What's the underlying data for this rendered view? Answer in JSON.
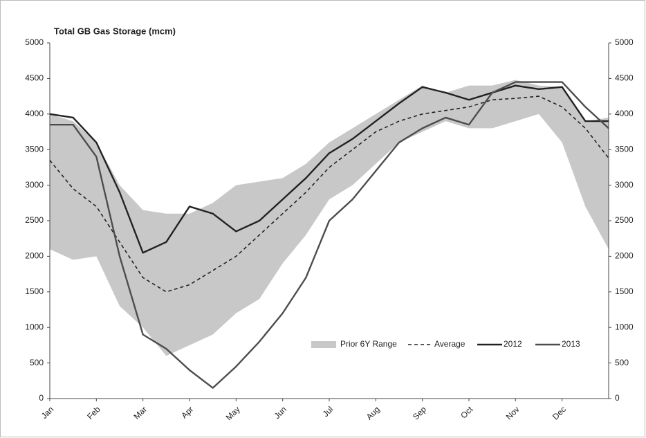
{
  "chart_data": {
    "type": "line",
    "title": "Total GB Gas Storage (mcm)",
    "x": [
      0,
      0.5,
      1,
      1.5,
      2,
      2.5,
      3,
      3.5,
      4,
      4.5,
      5,
      5.5,
      6,
      6.5,
      7,
      7.5,
      8,
      8.5,
      9,
      9.5,
      10,
      10.5,
      11,
      11.5,
      12
    ],
    "xlim": [
      0,
      12
    ],
    "xticks": [
      {
        "value": 0,
        "label": "Jan"
      },
      {
        "value": 1,
        "label": "Feb"
      },
      {
        "value": 2,
        "label": "Mar"
      },
      {
        "value": 3,
        "label": "Apr"
      },
      {
        "value": 4,
        "label": "May"
      },
      {
        "value": 5,
        "label": "Jun"
      },
      {
        "value": 6,
        "label": "Jul"
      },
      {
        "value": 7,
        "label": "Aug"
      },
      {
        "value": 8,
        "label": "Sep"
      },
      {
        "value": 9,
        "label": "Oct"
      },
      {
        "value": 10,
        "label": "Nov"
      },
      {
        "value": 11,
        "label": "Dec"
      }
    ],
    "ylim": [
      0,
      5000
    ],
    "yticks": [
      0,
      500,
      1000,
      1500,
      2000,
      2500,
      3000,
      3500,
      4000,
      4500,
      5000
    ],
    "y2lim": [
      0,
      5000
    ],
    "y2ticks": [
      0,
      500,
      1000,
      1500,
      2000,
      2500,
      3000,
      3500,
      4000,
      4500,
      5000
    ],
    "range": {
      "name": "Prior 6Y Range",
      "color": "#c8c8c8",
      "low": [
        2100,
        1950,
        2000,
        1300,
        1000,
        600,
        750,
        900,
        1200,
        1400,
        1900,
        2300,
        2800,
        3000,
        3300,
        3600,
        3750,
        3900,
        3800,
        3800,
        3900,
        4000,
        3600,
        2700,
        2100
      ],
      "high": [
        4000,
        3900,
        3600,
        3000,
        2650,
        2600,
        2600,
        2750,
        3000,
        3050,
        3100,
        3300,
        3600,
        3800,
        4000,
        4200,
        4400,
        4300,
        4400,
        4400,
        4480,
        4400,
        4380,
        3900,
        3950
      ]
    },
    "series": [
      {
        "name": "Average",
        "color": "#222222",
        "dashed": true,
        "values": [
          3350,
          2950,
          2700,
          2200,
          1700,
          1500,
          1600,
          1800,
          2000,
          2300,
          2600,
          2900,
          3250,
          3500,
          3750,
          3900,
          4000,
          4050,
          4100,
          4200,
          4220,
          4250,
          4100,
          3800,
          3380
        ]
      },
      {
        "name": "2012",
        "color": "#222222",
        "dashed": false,
        "values": [
          4000,
          3950,
          3600,
          2900,
          2050,
          2200,
          2700,
          2600,
          2350,
          2500,
          2800,
          3100,
          3450,
          3650,
          3900,
          4150,
          4380,
          4300,
          4200,
          4300,
          4400,
          4350,
          4380,
          3900,
          3900
        ]
      },
      {
        "name": "2013",
        "color": "#4d4d4d",
        "dashed": false,
        "values": [
          3850,
          3850,
          3400,
          2000,
          900,
          700,
          400,
          150,
          450,
          800,
          1200,
          1700,
          2500,
          2800,
          3200,
          3600,
          3800,
          3950,
          3850,
          4300,
          4450,
          4450,
          4450,
          4100,
          3800
        ]
      }
    ]
  }
}
